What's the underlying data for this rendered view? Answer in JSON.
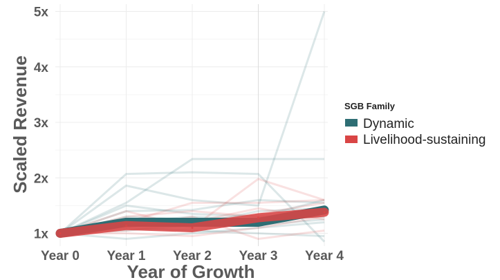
{
  "chart_data": {
    "type": "line",
    "title": "",
    "xlabel": "Year of Growth",
    "ylabel": "Scaled Revenue",
    "categories": [
      "Year 0",
      "Year 1",
      "Year 2",
      "Year 3",
      "Year 4"
    ],
    "y_ticks": [
      {
        "value": 1,
        "label": "1x"
      },
      {
        "value": 2,
        "label": "2x"
      },
      {
        "value": 3,
        "label": "3x"
      },
      {
        "value": 4,
        "label": "4x"
      },
      {
        "value": 5,
        "label": "5x"
      }
    ],
    "ylim": [
      0.85,
      5.05
    ],
    "grid": true,
    "legend": {
      "title": "SGB Family",
      "placement": "right"
    },
    "series": [
      {
        "name": "Dynamic",
        "color": "#2e6e74",
        "values": [
          1.0,
          1.2,
          1.2,
          1.2,
          1.42
        ]
      },
      {
        "name": "Livelihood-sustaining",
        "color": "#d94545",
        "values": [
          1.0,
          1.14,
          1.1,
          1.28,
          1.38
        ]
      }
    ],
    "background_lines": [
      {
        "group": "Dynamic",
        "values": [
          1.0,
          2.07,
          2.1,
          2.07,
          0.85
        ]
      },
      {
        "group": "Dynamic",
        "values": [
          1.0,
          1.86,
          1.6,
          1.5,
          5.0
        ]
      },
      {
        "group": "Dynamic",
        "values": [
          1.0,
          1.55,
          2.34,
          2.34,
          2.34
        ]
      },
      {
        "group": "Dynamic",
        "values": [
          1.0,
          1.5,
          1.35,
          1.3,
          1.6
        ]
      },
      {
        "group": "Dynamic",
        "values": [
          1.0,
          1.4,
          1.42,
          1.6,
          1.55
        ]
      },
      {
        "group": "Dynamic",
        "values": [
          1.0,
          1.3,
          1.25,
          1.15,
          1.25
        ]
      },
      {
        "group": "Dynamic",
        "values": [
          1.0,
          1.1,
          1.05,
          1.0,
          0.95
        ]
      },
      {
        "group": "Dynamic",
        "values": [
          1.0,
          1.05,
          1.15,
          1.4,
          1.45
        ]
      },
      {
        "group": "Dynamic",
        "values": [
          1.0,
          0.9,
          1.0,
          1.1,
          1.2
        ]
      },
      {
        "group": "Dynamic",
        "values": [
          1.0,
          1.2,
          1.3,
          1.25,
          1.3
        ]
      },
      {
        "group": "Livelihood-sustaining",
        "values": [
          1.0,
          1.4,
          1.1,
          1.98,
          1.6
        ]
      },
      {
        "group": "Livelihood-sustaining",
        "values": [
          1.0,
          1.2,
          1.55,
          1.55,
          1.6
        ]
      },
      {
        "group": "Livelihood-sustaining",
        "values": [
          1.0,
          1.3,
          1.4,
          1.3,
          1.35
        ]
      },
      {
        "group": "Livelihood-sustaining",
        "values": [
          1.0,
          1.05,
          1.2,
          1.45,
          1.25
        ]
      },
      {
        "group": "Livelihood-sustaining",
        "values": [
          1.0,
          1.0,
          0.95,
          1.1,
          1.3
        ]
      },
      {
        "group": "Livelihood-sustaining",
        "values": [
          1.0,
          1.1,
          1.3,
          0.9,
          1.05
        ]
      },
      {
        "group": "Livelihood-sustaining",
        "values": [
          1.0,
          1.15,
          1.2,
          1.35,
          1.55
        ]
      }
    ]
  }
}
